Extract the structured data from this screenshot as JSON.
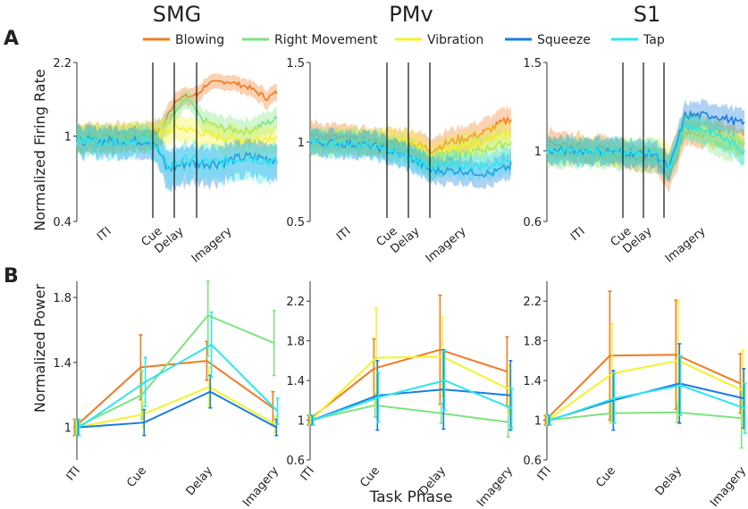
{
  "panel_labels": [
    "A",
    "B"
  ],
  "titles": [
    "SMG",
    "PMv",
    "S1"
  ],
  "legend": [
    {
      "label": "Blowing",
      "color": "#f07b22"
    },
    {
      "label": "Right Movement",
      "color": "#7ee37e"
    },
    {
      "label": "Vibration",
      "color": "#f3f32a"
    },
    {
      "label": "Squeeze",
      "color": "#1a7de0"
    },
    {
      "label": "Tap",
      "color": "#2ee6ee"
    }
  ],
  "chart_data": [
    {
      "type": "line",
      "region": "SMG",
      "ylabel": "Normalized Firing Rate",
      "ylim": [
        0.4,
        2.2
      ],
      "yticks": [
        "2.2",
        "1",
        "0.4"
      ],
      "phase_labels": [
        "ITI",
        "Cue",
        "Delay",
        "Imagery"
      ],
      "series": [
        {
          "name": "Blowing",
          "keys": [
            [
              0,
              1.0
            ],
            [
              0.3,
              1.0
            ],
            [
              0.42,
              1.05
            ],
            [
              0.5,
              1.5
            ],
            [
              0.6,
              1.55
            ],
            [
              0.65,
              1.75
            ],
            [
              0.75,
              1.8
            ],
            [
              0.85,
              1.7
            ],
            [
              0.95,
              1.5
            ],
            [
              1.0,
              1.6
            ]
          ]
        },
        {
          "name": "Right Movement",
          "keys": [
            [
              0,
              1.0
            ],
            [
              0.3,
              1.0
            ],
            [
              0.42,
              1.05
            ],
            [
              0.5,
              1.3
            ],
            [
              0.55,
              1.5
            ],
            [
              0.62,
              1.2
            ],
            [
              0.7,
              1.1
            ],
            [
              0.85,
              1.05
            ],
            [
              1.0,
              1.2
            ]
          ]
        },
        {
          "name": "Vibration",
          "keys": [
            [
              0,
              1.0
            ],
            [
              0.3,
              1.0
            ],
            [
              0.42,
              1.02
            ],
            [
              0.5,
              1.1
            ],
            [
              0.6,
              1.05
            ],
            [
              0.7,
              1.0
            ],
            [
              0.85,
              0.95
            ],
            [
              1.0,
              1.0
            ]
          ]
        },
        {
          "name": "Squeeze",
          "keys": [
            [
              0,
              0.95
            ],
            [
              0.3,
              0.95
            ],
            [
              0.38,
              0.95
            ],
            [
              0.45,
              0.7
            ],
            [
              0.55,
              0.75
            ],
            [
              0.7,
              0.75
            ],
            [
              0.85,
              0.8
            ],
            [
              1.0,
              0.78
            ]
          ]
        },
        {
          "name": "Tap",
          "keys": [
            [
              0,
              0.95
            ],
            [
              0.3,
              0.95
            ],
            [
              0.38,
              0.95
            ],
            [
              0.45,
              0.72
            ],
            [
              0.55,
              0.78
            ],
            [
              0.7,
              0.75
            ],
            [
              0.85,
              0.8
            ],
            [
              1.0,
              0.75
            ]
          ]
        }
      ]
    },
    {
      "type": "line",
      "region": "PMv",
      "ylabel": "",
      "ylim": [
        0.5,
        1.5
      ],
      "yticks": [
        "1.5",
        "1",
        "0.5"
      ],
      "phase_labels": [
        "ITI",
        "Cue",
        "Delay",
        "Imagery"
      ],
      "series": [
        {
          "name": "Blowing",
          "keys": [
            [
              0,
              1.05
            ],
            [
              0.3,
              1.0
            ],
            [
              0.5,
              1.0
            ],
            [
              0.6,
              0.95
            ],
            [
              0.7,
              1.0
            ],
            [
              0.85,
              1.05
            ],
            [
              1.0,
              1.15
            ]
          ]
        },
        {
          "name": "Right Movement",
          "keys": [
            [
              0,
              1.0
            ],
            [
              0.3,
              1.0
            ],
            [
              0.5,
              0.95
            ],
            [
              0.6,
              0.85
            ],
            [
              0.7,
              0.9
            ],
            [
              0.85,
              0.95
            ],
            [
              1.0,
              1.0
            ]
          ]
        },
        {
          "name": "Vibration",
          "keys": [
            [
              0,
              1.0
            ],
            [
              0.3,
              1.0
            ],
            [
              0.5,
              1.0
            ],
            [
              0.6,
              0.92
            ],
            [
              0.7,
              0.95
            ],
            [
              0.85,
              1.0
            ],
            [
              1.0,
              1.05
            ]
          ]
        },
        {
          "name": "Squeeze",
          "keys": [
            [
              0,
              1.0
            ],
            [
              0.3,
              0.98
            ],
            [
              0.5,
              0.9
            ],
            [
              0.6,
              0.82
            ],
            [
              0.75,
              0.82
            ],
            [
              0.9,
              0.8
            ],
            [
              1.0,
              0.85
            ]
          ]
        },
        {
          "name": "Tap",
          "keys": [
            [
              0,
              1.0
            ],
            [
              0.3,
              0.98
            ],
            [
              0.5,
              0.9
            ],
            [
              0.6,
              0.85
            ],
            [
              0.75,
              0.85
            ],
            [
              0.9,
              0.85
            ],
            [
              1.0,
              0.9
            ]
          ]
        }
      ]
    },
    {
      "type": "line",
      "region": "S1",
      "ylabel": "",
      "ylim": [
        0.6,
        1.5
      ],
      "yticks": [
        "1.5",
        "1",
        "0.6"
      ],
      "phase_labels": [
        "ITI",
        "Cue",
        "Delay",
        "Imagery"
      ],
      "series": [
        {
          "name": "Blowing",
          "keys": [
            [
              0,
              1.05
            ],
            [
              0.3,
              1.0
            ],
            [
              0.55,
              0.95
            ],
            [
              0.62,
              0.85
            ],
            [
              0.7,
              1.1
            ],
            [
              0.85,
              1.1
            ],
            [
              1.0,
              1.05
            ]
          ]
        },
        {
          "name": "Right Movement",
          "keys": [
            [
              0,
              0.98
            ],
            [
              0.3,
              0.98
            ],
            [
              0.55,
              0.95
            ],
            [
              0.62,
              0.9
            ],
            [
              0.7,
              1.15
            ],
            [
              0.85,
              1.05
            ],
            [
              1.0,
              1.0
            ]
          ]
        },
        {
          "name": "Vibration",
          "keys": [
            [
              0,
              1.0
            ],
            [
              0.3,
              1.0
            ],
            [
              0.55,
              1.0
            ],
            [
              0.62,
              0.95
            ],
            [
              0.7,
              1.15
            ],
            [
              0.85,
              1.1
            ],
            [
              1.0,
              1.05
            ]
          ]
        },
        {
          "name": "Squeeze",
          "keys": [
            [
              0,
              1.0
            ],
            [
              0.3,
              1.0
            ],
            [
              0.55,
              0.98
            ],
            [
              0.62,
              0.9
            ],
            [
              0.7,
              1.2
            ],
            [
              0.85,
              1.2
            ],
            [
              1.0,
              1.15
            ]
          ]
        },
        {
          "name": "Tap",
          "keys": [
            [
              0,
              1.0
            ],
            [
              0.3,
              1.0
            ],
            [
              0.55,
              0.98
            ],
            [
              0.62,
              0.9
            ],
            [
              0.7,
              1.15
            ],
            [
              0.85,
              1.1
            ],
            [
              1.0,
              1.0
            ]
          ]
        }
      ]
    },
    {
      "type": "line",
      "region": "SMG",
      "xlabel": "Task Phase",
      "ylabel": "Normalized Power",
      "categories": [
        "ITI",
        "Cue",
        "Delay",
        "Imagery"
      ],
      "ylim": [
        0.8,
        1.9
      ],
      "yticks": [
        1,
        1.4,
        1.8
      ],
      "series": [
        {
          "name": "Blowing",
          "values": [
            1.0,
            1.37,
            1.41,
            1.12
          ],
          "err": [
            0.05,
            0.2,
            0.12,
            0.1
          ]
        },
        {
          "name": "Right Movement",
          "values": [
            1.0,
            1.2,
            1.69,
            1.52
          ],
          "err": [
            0.05,
            0.15,
            0.25,
            0.2
          ]
        },
        {
          "name": "Vibration",
          "values": [
            1.0,
            1.08,
            1.25,
            1.02
          ],
          "err": [
            0.05,
            0.08,
            0.12,
            0.05
          ]
        },
        {
          "name": "Squeeze",
          "values": [
            1.0,
            1.03,
            1.22,
            1.0
          ],
          "err": [
            0.05,
            0.08,
            0.1,
            0.05
          ]
        },
        {
          "name": "Tap",
          "values": [
            1.0,
            1.28,
            1.51,
            1.1
          ],
          "err": [
            0.05,
            0.15,
            0.2,
            0.08
          ]
        }
      ]
    },
    {
      "type": "line",
      "region": "PMv",
      "xlabel": "Task Phase",
      "ylabel": "",
      "categories": [
        "ITI",
        "Cue",
        "Delay",
        "Imagery"
      ],
      "ylim": [
        0.6,
        2.4
      ],
      "yticks": [
        0.6,
        1,
        1.4,
        1.8,
        2.2
      ],
      "series": [
        {
          "name": "Blowing",
          "values": [
            1.0,
            1.52,
            1.71,
            1.49
          ],
          "err": [
            0.05,
            0.3,
            0.55,
            0.35
          ]
        },
        {
          "name": "Right Movement",
          "values": [
            1.0,
            1.15,
            1.07,
            0.98
          ],
          "err": [
            0.05,
            0.12,
            0.1,
            0.15
          ]
        },
        {
          "name": "Vibration",
          "values": [
            1.0,
            1.63,
            1.64,
            1.31
          ],
          "err": [
            0.05,
            0.5,
            0.4,
            0.25
          ]
        },
        {
          "name": "Squeeze",
          "values": [
            1.0,
            1.25,
            1.31,
            1.25
          ],
          "err": [
            0.05,
            0.35,
            0.4,
            0.35
          ]
        },
        {
          "name": "Tap",
          "values": [
            1.0,
            1.23,
            1.4,
            1.12
          ],
          "err": [
            0.05,
            0.25,
            0.3,
            0.2
          ]
        }
      ]
    },
    {
      "type": "line",
      "region": "S1",
      "xlabel": "Task Phase",
      "ylabel": "",
      "categories": [
        "ITI",
        "Cue",
        "Delay",
        "Imagery"
      ],
      "ylim": [
        0.6,
        2.4
      ],
      "yticks": [
        0.6,
        1,
        1.4,
        1.8,
        2.2
      ],
      "series": [
        {
          "name": "Blowing",
          "values": [
            1.0,
            1.65,
            1.66,
            1.37
          ],
          "err": [
            0.05,
            0.65,
            0.55,
            0.3
          ]
        },
        {
          "name": "Right Movement",
          "values": [
            1.0,
            1.07,
            1.08,
            1.02
          ],
          "err": [
            0.05,
            0.1,
            0.1,
            0.3
          ]
        },
        {
          "name": "Vibration",
          "values": [
            1.0,
            1.47,
            1.6,
            1.3
          ],
          "err": [
            0.05,
            0.5,
            0.6,
            0.4
          ]
        },
        {
          "name": "Squeeze",
          "values": [
            1.0,
            1.2,
            1.37,
            1.22
          ],
          "err": [
            0.05,
            0.3,
            0.4,
            0.3
          ]
        },
        {
          "name": "Tap",
          "values": [
            1.0,
            1.22,
            1.35,
            1.12
          ],
          "err": [
            0.05,
            0.25,
            0.3,
            0.25
          ]
        }
      ]
    }
  ]
}
